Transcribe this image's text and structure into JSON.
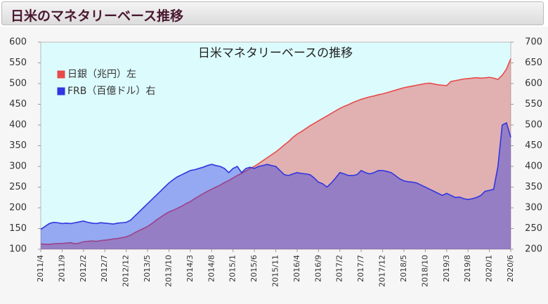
{
  "header": {
    "title": "日米のマネタリーベース推移"
  },
  "chart_data": {
    "type": "area",
    "title": "日米マネタリーベースの推移",
    "categories": [
      "2011/4",
      null,
      null,
      null,
      null,
      "2011/9",
      null,
      null,
      null,
      null,
      "2012/2",
      null,
      null,
      null,
      null,
      "2012/7",
      null,
      null,
      null,
      null,
      "2012/12",
      null,
      null,
      null,
      null,
      "2013/5",
      null,
      null,
      null,
      null,
      "2013/10",
      null,
      null,
      null,
      null,
      "2014/3",
      null,
      null,
      null,
      null,
      "2014/8",
      null,
      null,
      null,
      null,
      "2015/1",
      null,
      null,
      null,
      null,
      "2015/6",
      null,
      null,
      null,
      null,
      "2015/11",
      null,
      null,
      null,
      null,
      "2016/4",
      null,
      null,
      null,
      null,
      "2016/9",
      null,
      null,
      null,
      null,
      "2017/2",
      null,
      null,
      null,
      null,
      "2017/7",
      null,
      null,
      null,
      null,
      "2017/12",
      null,
      null,
      null,
      null,
      "2018/5",
      null,
      null,
      null,
      null,
      "2018/10",
      null,
      null,
      null,
      null,
      "2019/3",
      null,
      null,
      null,
      null,
      "2019/8",
      null,
      null,
      null,
      null,
      "2020/1",
      null,
      null,
      null,
      null,
      "2020/6"
    ],
    "series": [
      {
        "name": "日銀（兆円）左",
        "color": "#e84a4a",
        "axis": "y",
        "values": [
          113,
          112,
          112,
          113,
          114,
          114,
          115,
          116,
          113,
          115,
          118,
          119,
          120,
          119,
          121,
          122,
          123,
          125,
          126,
          128,
          130,
          134,
          140,
          145,
          150,
          155,
          162,
          170,
          177,
          184,
          190,
          194,
          199,
          204,
          210,
          215,
          222,
          228,
          234,
          240,
          245,
          250,
          255,
          261,
          266,
          272,
          278,
          283,
          289,
          295,
          300,
          307,
          314,
          321,
          328,
          335,
          343,
          352,
          360,
          370,
          378,
          384,
          391,
          398,
          404,
          410,
          416,
          422,
          428,
          434,
          440,
          445,
          449,
          454,
          458,
          462,
          465,
          468,
          470,
          473,
          475,
          478,
          481,
          484,
          487,
          490,
          492,
          494,
          496,
          498,
          500,
          501,
          499,
          497,
          496,
          495,
          505,
          507,
          509,
          511,
          512,
          513,
          514,
          513,
          514,
          515,
          513,
          510,
          520,
          535,
          560
        ]
      },
      {
        "name": "FRB（百億ドル）右",
        "color": "#3036e0",
        "axis": "y2",
        "values": [
          248,
          255,
          262,
          265,
          264,
          262,
          263,
          262,
          264,
          266,
          268,
          265,
          263,
          262,
          264,
          263,
          262,
          261,
          263,
          264,
          265,
          270,
          280,
          290,
          300,
          310,
          320,
          330,
          340,
          350,
          360,
          368,
          375,
          380,
          385,
          390,
          392,
          395,
          398,
          402,
          405,
          402,
          400,
          395,
          385,
          395,
          400,
          385,
          395,
          398,
          395,
          400,
          402,
          405,
          402,
          400,
          390,
          380,
          378,
          382,
          385,
          383,
          382,
          380,
          372,
          362,
          358,
          350,
          360,
          372,
          385,
          382,
          378,
          378,
          380,
          390,
          385,
          382,
          385,
          390,
          390,
          388,
          385,
          378,
          370,
          365,
          363,
          362,
          360,
          355,
          350,
          345,
          340,
          335,
          330,
          335,
          330,
          325,
          326,
          322,
          320,
          322,
          325,
          330,
          340,
          342,
          345,
          400,
          500,
          505,
          470
        ]
      }
    ],
    "ylim": [
      100,
      600
    ],
    "yticks": [
      100,
      150,
      200,
      250,
      300,
      350,
      400,
      450,
      500,
      550,
      600
    ],
    "y2lim": [
      200,
      700
    ],
    "y2ticks": [
      200,
      250,
      300,
      350,
      400,
      450,
      500,
      550,
      600,
      650,
      700
    ],
    "grid": false,
    "legend": "upper-left",
    "background": "#dcfbfd"
  }
}
